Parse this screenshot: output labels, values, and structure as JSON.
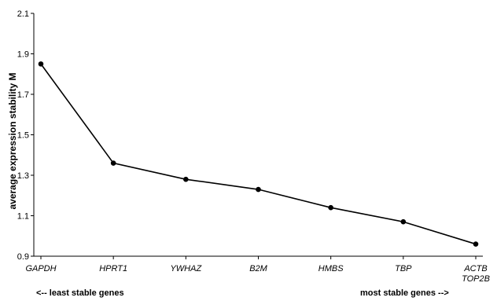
{
  "chart_data": {
    "type": "line",
    "categories": [
      "GAPDH",
      "HPRT1",
      "YWHAZ",
      "B2M",
      "HMBS",
      "TBP",
      "ACTB TOP2B"
    ],
    "category_lines": [
      [
        "GAPDH"
      ],
      [
        "HPRT1"
      ],
      [
        "YWHAZ"
      ],
      [
        "B2M"
      ],
      [
        "HMBS"
      ],
      [
        "TBP"
      ],
      [
        "ACTB",
        "TOP2B"
      ]
    ],
    "values": [
      1.85,
      1.36,
      1.28,
      1.23,
      1.14,
      1.07,
      0.96
    ],
    "ylabel": "average expression stability M",
    "ylim": [
      0.9,
      2.1
    ],
    "yticks": [
      "0.9",
      "1.1",
      "1.3",
      "1.5",
      "1.7",
      "1.9",
      "2.1"
    ],
    "grid": false,
    "notes": {
      "left": "<--  least stable genes",
      "right": "most stable genes -->"
    }
  }
}
